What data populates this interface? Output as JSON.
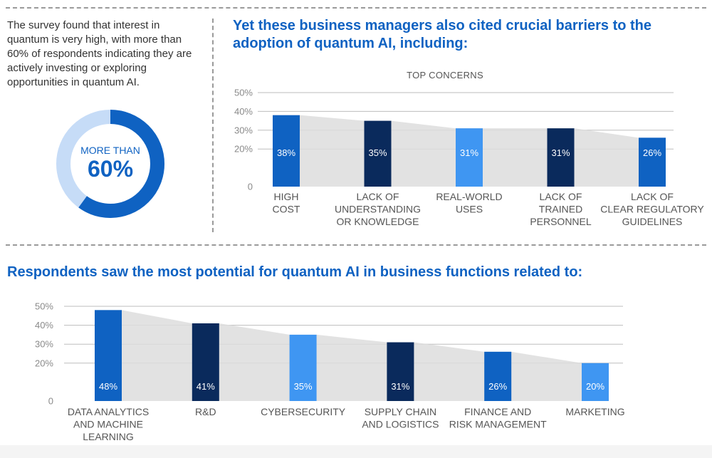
{
  "intro_text": "The survey found that interest in quantum is very high, with more than 60% of respondents indicating they are actively investing or exploring opportunities in quantum AI.",
  "donut": {
    "label": "MORE THAN",
    "value_text": "60%",
    "value": 60,
    "color": "#0f62c2",
    "track_color": "#c6dcf7"
  },
  "heading_barriers": "Yet these business managers also cited crucial barriers to the adoption of quantum AI, including:",
  "heading_potential": "Respondents saw the most potential for quantum AI in business functions related to:",
  "chart_data": [
    {
      "type": "bar",
      "title": "TOP CONCERNS",
      "categories": [
        [
          "HIGH",
          "COST"
        ],
        [
          "LACK OF",
          "UNDERSTANDING",
          "OR KNOWLEDGE"
        ],
        [
          "REAL-WORLD",
          "USES"
        ],
        [
          "LACK OF",
          "TRAINED",
          "PERSONNEL"
        ],
        [
          "LACK OF",
          "CLEAR REGULATORY",
          "GUIDELINES"
        ]
      ],
      "values": [
        38,
        35,
        31,
        31,
        26
      ],
      "value_labels": [
        "38%",
        "35%",
        "31%",
        "31%",
        "26%"
      ],
      "colors": [
        "#0f62c2",
        "#0a2a5c",
        "#3f96f2",
        "#0a2a5c",
        "#0f62c2"
      ],
      "yticks": [
        "0",
        "20%",
        "30%",
        "40%",
        "50%"
      ],
      "ylim": [
        0,
        50
      ],
      "grid": true
    },
    {
      "type": "bar",
      "title": "",
      "categories": [
        [
          "DATA ANALYTICS",
          "AND MACHINE",
          "LEARNING"
        ],
        [
          "R&D"
        ],
        [
          "CYBERSECURITY"
        ],
        [
          "SUPPLY CHAIN",
          "AND LOGISTICS"
        ],
        [
          "FINANCE AND",
          "RISK MANAGEMENT"
        ],
        [
          "MARKETING"
        ]
      ],
      "values": [
        48,
        41,
        35,
        31,
        26,
        20
      ],
      "value_labels": [
        "48%",
        "41%",
        "35%",
        "31%",
        "26%",
        "20%"
      ],
      "colors": [
        "#0f62c2",
        "#0a2a5c",
        "#3f96f2",
        "#0a2a5c",
        "#0f62c2",
        "#3f96f2"
      ],
      "yticks": [
        "0",
        "20%",
        "30%",
        "40%",
        "50%"
      ],
      "ylim": [
        0,
        50
      ],
      "grid": true
    }
  ]
}
